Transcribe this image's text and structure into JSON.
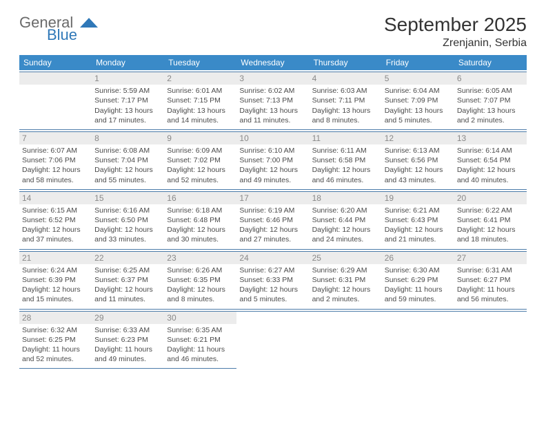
{
  "logo": {
    "word1": "General",
    "word2": "Blue",
    "color1": "#6a6a6a",
    "color2": "#2f78b8"
  },
  "title": "September 2025",
  "location": "Zrenjanin, Serbia",
  "header_bg": "#3a8ac8",
  "header_fg": "#ffffff",
  "daynum_bg": "#ececec",
  "daynum_fg": "#888888",
  "border_color": "#4a7aa8",
  "text_color": "#4a4a4a",
  "days": [
    "Sunday",
    "Monday",
    "Tuesday",
    "Wednesday",
    "Thursday",
    "Friday",
    "Saturday"
  ],
  "weeks": [
    [
      {
        "n": "",
        "sr": "",
        "ss": "",
        "dl": ""
      },
      {
        "n": "1",
        "sr": "Sunrise: 5:59 AM",
        "ss": "Sunset: 7:17 PM",
        "dl": "Daylight: 13 hours and 17 minutes."
      },
      {
        "n": "2",
        "sr": "Sunrise: 6:01 AM",
        "ss": "Sunset: 7:15 PM",
        "dl": "Daylight: 13 hours and 14 minutes."
      },
      {
        "n": "3",
        "sr": "Sunrise: 6:02 AM",
        "ss": "Sunset: 7:13 PM",
        "dl": "Daylight: 13 hours and 11 minutes."
      },
      {
        "n": "4",
        "sr": "Sunrise: 6:03 AM",
        "ss": "Sunset: 7:11 PM",
        "dl": "Daylight: 13 hours and 8 minutes."
      },
      {
        "n": "5",
        "sr": "Sunrise: 6:04 AM",
        "ss": "Sunset: 7:09 PM",
        "dl": "Daylight: 13 hours and 5 minutes."
      },
      {
        "n": "6",
        "sr": "Sunrise: 6:05 AM",
        "ss": "Sunset: 7:07 PM",
        "dl": "Daylight: 13 hours and 2 minutes."
      }
    ],
    [
      {
        "n": "7",
        "sr": "Sunrise: 6:07 AM",
        "ss": "Sunset: 7:06 PM",
        "dl": "Daylight: 12 hours and 58 minutes."
      },
      {
        "n": "8",
        "sr": "Sunrise: 6:08 AM",
        "ss": "Sunset: 7:04 PM",
        "dl": "Daylight: 12 hours and 55 minutes."
      },
      {
        "n": "9",
        "sr": "Sunrise: 6:09 AM",
        "ss": "Sunset: 7:02 PM",
        "dl": "Daylight: 12 hours and 52 minutes."
      },
      {
        "n": "10",
        "sr": "Sunrise: 6:10 AM",
        "ss": "Sunset: 7:00 PM",
        "dl": "Daylight: 12 hours and 49 minutes."
      },
      {
        "n": "11",
        "sr": "Sunrise: 6:11 AM",
        "ss": "Sunset: 6:58 PM",
        "dl": "Daylight: 12 hours and 46 minutes."
      },
      {
        "n": "12",
        "sr": "Sunrise: 6:13 AM",
        "ss": "Sunset: 6:56 PM",
        "dl": "Daylight: 12 hours and 43 minutes."
      },
      {
        "n": "13",
        "sr": "Sunrise: 6:14 AM",
        "ss": "Sunset: 6:54 PM",
        "dl": "Daylight: 12 hours and 40 minutes."
      }
    ],
    [
      {
        "n": "14",
        "sr": "Sunrise: 6:15 AM",
        "ss": "Sunset: 6:52 PM",
        "dl": "Daylight: 12 hours and 37 minutes."
      },
      {
        "n": "15",
        "sr": "Sunrise: 6:16 AM",
        "ss": "Sunset: 6:50 PM",
        "dl": "Daylight: 12 hours and 33 minutes."
      },
      {
        "n": "16",
        "sr": "Sunrise: 6:18 AM",
        "ss": "Sunset: 6:48 PM",
        "dl": "Daylight: 12 hours and 30 minutes."
      },
      {
        "n": "17",
        "sr": "Sunrise: 6:19 AM",
        "ss": "Sunset: 6:46 PM",
        "dl": "Daylight: 12 hours and 27 minutes."
      },
      {
        "n": "18",
        "sr": "Sunrise: 6:20 AM",
        "ss": "Sunset: 6:44 PM",
        "dl": "Daylight: 12 hours and 24 minutes."
      },
      {
        "n": "19",
        "sr": "Sunrise: 6:21 AM",
        "ss": "Sunset: 6:43 PM",
        "dl": "Daylight: 12 hours and 21 minutes."
      },
      {
        "n": "20",
        "sr": "Sunrise: 6:22 AM",
        "ss": "Sunset: 6:41 PM",
        "dl": "Daylight: 12 hours and 18 minutes."
      }
    ],
    [
      {
        "n": "21",
        "sr": "Sunrise: 6:24 AM",
        "ss": "Sunset: 6:39 PM",
        "dl": "Daylight: 12 hours and 15 minutes."
      },
      {
        "n": "22",
        "sr": "Sunrise: 6:25 AM",
        "ss": "Sunset: 6:37 PM",
        "dl": "Daylight: 12 hours and 11 minutes."
      },
      {
        "n": "23",
        "sr": "Sunrise: 6:26 AM",
        "ss": "Sunset: 6:35 PM",
        "dl": "Daylight: 12 hours and 8 minutes."
      },
      {
        "n": "24",
        "sr": "Sunrise: 6:27 AM",
        "ss": "Sunset: 6:33 PM",
        "dl": "Daylight: 12 hours and 5 minutes."
      },
      {
        "n": "25",
        "sr": "Sunrise: 6:29 AM",
        "ss": "Sunset: 6:31 PM",
        "dl": "Daylight: 12 hours and 2 minutes."
      },
      {
        "n": "26",
        "sr": "Sunrise: 6:30 AM",
        "ss": "Sunset: 6:29 PM",
        "dl": "Daylight: 11 hours and 59 minutes."
      },
      {
        "n": "27",
        "sr": "Sunrise: 6:31 AM",
        "ss": "Sunset: 6:27 PM",
        "dl": "Daylight: 11 hours and 56 minutes."
      }
    ],
    [
      {
        "n": "28",
        "sr": "Sunrise: 6:32 AM",
        "ss": "Sunset: 6:25 PM",
        "dl": "Daylight: 11 hours and 52 minutes."
      },
      {
        "n": "29",
        "sr": "Sunrise: 6:33 AM",
        "ss": "Sunset: 6:23 PM",
        "dl": "Daylight: 11 hours and 49 minutes."
      },
      {
        "n": "30",
        "sr": "Sunrise: 6:35 AM",
        "ss": "Sunset: 6:21 PM",
        "dl": "Daylight: 11 hours and 46 minutes."
      },
      {
        "n": "",
        "sr": "",
        "ss": "",
        "dl": ""
      },
      {
        "n": "",
        "sr": "",
        "ss": "",
        "dl": ""
      },
      {
        "n": "",
        "sr": "",
        "ss": "",
        "dl": ""
      },
      {
        "n": "",
        "sr": "",
        "ss": "",
        "dl": ""
      }
    ]
  ]
}
